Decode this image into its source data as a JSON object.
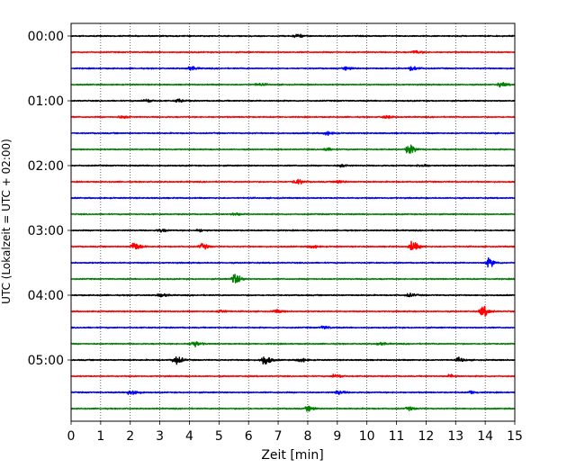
{
  "chart_data": {
    "type": "line",
    "title": "",
    "xlabel": "Zeit  [min]",
    "ylabel": "UTC (Lokalzeit = UTC + 02:00)",
    "xlim": [
      0,
      15
    ],
    "x_ticks": [
      0,
      1,
      2,
      3,
      4,
      5,
      6,
      7,
      8,
      9,
      10,
      11,
      12,
      13,
      14,
      15
    ],
    "x_tick_labels": [
      "0",
      "1",
      "2",
      "3",
      "4",
      "5",
      "6",
      "7",
      "8",
      "9",
      "10",
      "11",
      "12",
      "13",
      "14",
      "15"
    ],
    "y_tick_labels": [
      "00:00",
      "01:00",
      "02:00",
      "03:00",
      "04:00",
      "05:00"
    ],
    "grid": "vertical dotted at each minute",
    "trace_interval_minutes": 15,
    "trace_color_cycle": [
      "#000000",
      "#ff0000",
      "#0000ff",
      "#008000"
    ],
    "traces": [
      {
        "start": "00:00",
        "color": "#000000",
        "events": [
          [
            7.6,
            0.35
          ]
        ]
      },
      {
        "start": "00:15",
        "color": "#ff0000",
        "events": [
          [
            11.6,
            0.3
          ]
        ]
      },
      {
        "start": "00:30",
        "color": "#0000ff",
        "events": [
          [
            4.0,
            0.4
          ],
          [
            9.3,
            0.3
          ],
          [
            11.5,
            0.4
          ]
        ]
      },
      {
        "start": "00:45",
        "color": "#008000",
        "events": [
          [
            6.3,
            0.25
          ],
          [
            14.5,
            0.4
          ]
        ]
      },
      {
        "start": "01:00",
        "color": "#000000",
        "events": [
          [
            2.5,
            0.35
          ],
          [
            3.6,
            0.35
          ]
        ]
      },
      {
        "start": "01:15",
        "color": "#ff0000",
        "events": [
          [
            1.7,
            0.3
          ],
          [
            10.6,
            0.3
          ]
        ]
      },
      {
        "start": "01:30",
        "color": "#0000ff",
        "events": [
          [
            8.6,
            0.35
          ]
        ]
      },
      {
        "start": "01:45",
        "color": "#008000",
        "events": [
          [
            8.6,
            0.3
          ],
          [
            11.4,
            0.9
          ]
        ]
      },
      {
        "start": "02:00",
        "color": "#000000",
        "events": [
          [
            9.1,
            0.3
          ],
          [
            11.8,
            0.3
          ]
        ]
      },
      {
        "start": "02:15",
        "color": "#ff0000",
        "events": [
          [
            7.6,
            0.5
          ],
          [
            9.0,
            0.3
          ]
        ]
      },
      {
        "start": "02:30",
        "color": "#0000ff",
        "events": []
      },
      {
        "start": "02:45",
        "color": "#008000",
        "events": [
          [
            5.5,
            0.25
          ]
        ]
      },
      {
        "start": "03:00",
        "color": "#000000",
        "events": [
          [
            3.0,
            0.3
          ],
          [
            4.3,
            0.25
          ]
        ]
      },
      {
        "start": "03:15",
        "color": "#ff0000",
        "events": [
          [
            2.1,
            1.0
          ],
          [
            4.4,
            0.5
          ],
          [
            8.1,
            0.3
          ],
          [
            11.5,
            1.0
          ]
        ]
      },
      {
        "start": "03:30",
        "color": "#0000ff",
        "events": [
          [
            14.1,
            0.8
          ]
        ]
      },
      {
        "start": "03:45",
        "color": "#008000",
        "events": [
          [
            5.5,
            1.0
          ]
        ]
      },
      {
        "start": "04:00",
        "color": "#000000",
        "events": [
          [
            3.0,
            0.4
          ],
          [
            11.4,
            0.3
          ]
        ]
      },
      {
        "start": "04:15",
        "color": "#ff0000",
        "events": [
          [
            5.0,
            0.3
          ],
          [
            6.9,
            0.3
          ],
          [
            13.9,
            1.1
          ]
        ]
      },
      {
        "start": "04:30",
        "color": "#0000ff",
        "events": [
          [
            8.5,
            0.3
          ]
        ]
      },
      {
        "start": "04:45",
        "color": "#008000",
        "events": [
          [
            4.1,
            0.7
          ],
          [
            10.4,
            0.3
          ]
        ]
      },
      {
        "start": "05:00",
        "color": "#000000",
        "events": [
          [
            3.5,
            0.9
          ],
          [
            6.5,
            1.1
          ],
          [
            7.7,
            0.4
          ],
          [
            13.1,
            0.4
          ]
        ]
      },
      {
        "start": "05:15",
        "color": "#ff0000",
        "events": [
          [
            8.9,
            0.4
          ],
          [
            12.8,
            0.3
          ]
        ]
      },
      {
        "start": "05:30",
        "color": "#0000ff",
        "events": [
          [
            2.0,
            0.7
          ],
          [
            9.0,
            0.4
          ],
          [
            13.5,
            0.3
          ]
        ]
      },
      {
        "start": "05:45",
        "color": "#008000",
        "events": [
          [
            8.0,
            0.5
          ],
          [
            11.4,
            0.3
          ]
        ]
      }
    ]
  }
}
